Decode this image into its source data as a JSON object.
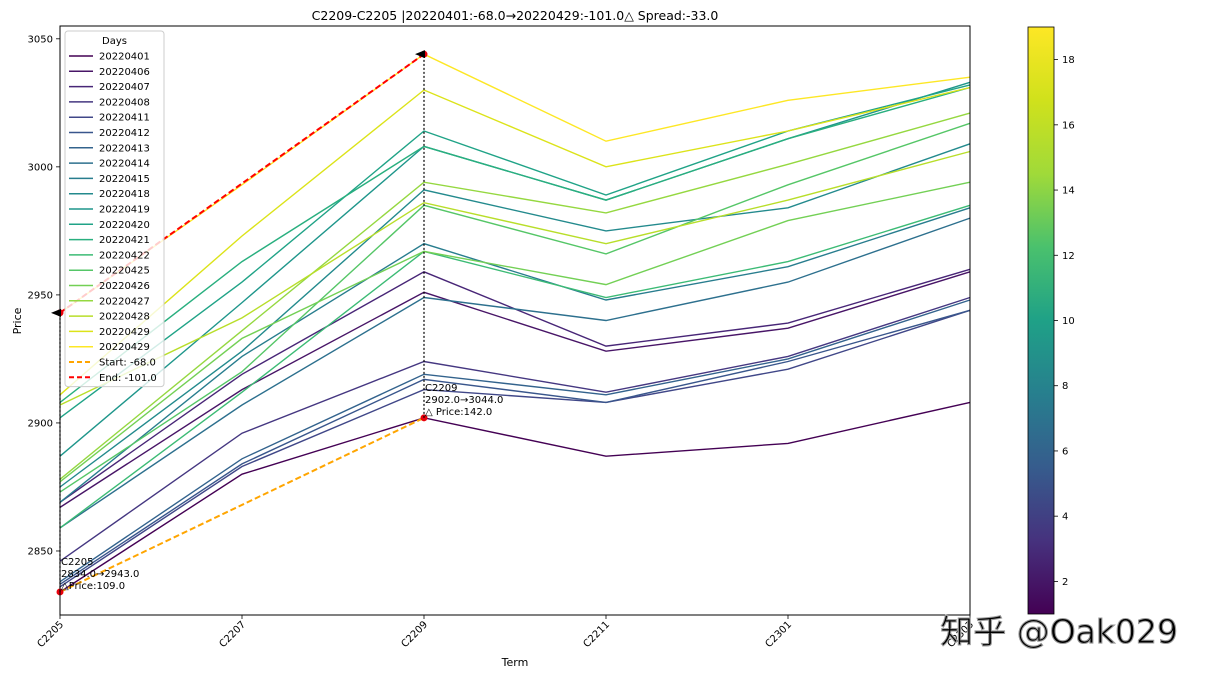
{
  "chart_data": {
    "type": "line",
    "title": "C2209-C2205 |20220401:-68.0→20220429:-101.0△ Spread:-33.0",
    "xlabel": "Term",
    "ylabel": "Price",
    "categories": [
      "C2205",
      "C2207",
      "C2209",
      "C2211",
      "C2301",
      "C2303"
    ],
    "ylim": [
      2825,
      3055
    ],
    "yticks": [
      2850,
      2900,
      2950,
      3000,
      3050
    ],
    "legend_title": "Days",
    "legend_position": "upper-left",
    "colorbar": {
      "min": 1,
      "max": 19,
      "ticks": [
        2,
        4,
        6,
        8,
        10,
        12,
        14,
        16,
        18
      ]
    },
    "series": [
      {
        "name": "20220401",
        "color": "#440154",
        "values": [
          2834,
          2880,
          2902,
          2887,
          2892,
          2908
        ]
      },
      {
        "name": "20220406",
        "color": "#481567",
        "values": [
          2867,
          2913,
          2951,
          2928,
          2937,
          2959
        ]
      },
      {
        "name": "20220407",
        "color": "#482677",
        "values": [
          2869,
          2919,
          2959,
          2930,
          2939,
          2960
        ]
      },
      {
        "name": "20220408",
        "color": "#453781",
        "values": [
          2846,
          2896,
          2924,
          2912,
          2926,
          2949
        ]
      },
      {
        "name": "20220411",
        "color": "#404788",
        "values": [
          2836,
          2883,
          2913,
          2908,
          2921,
          2944
        ]
      },
      {
        "name": "20220412",
        "color": "#39568c",
        "values": [
          2837,
          2884,
          2917,
          2908,
          2924,
          2944
        ]
      },
      {
        "name": "20220413",
        "color": "#33638d",
        "values": [
          2838,
          2886,
          2919,
          2911,
          2925,
          2948
        ]
      },
      {
        "name": "20220414",
        "color": "#2d708e",
        "values": [
          2859,
          2907,
          2949,
          2940,
          2955,
          2980
        ]
      },
      {
        "name": "20220415",
        "color": "#287d8e",
        "values": [
          2869,
          2926,
          2970,
          2948,
          2961,
          2984
        ]
      },
      {
        "name": "20220418",
        "color": "#238a8d",
        "values": [
          2875,
          2928,
          2991,
          2975,
          2984,
          3009
        ]
      },
      {
        "name": "20220419",
        "color": "#1f968b",
        "values": [
          2887,
          2947,
          3008,
          2987,
          3011,
          3033
        ]
      },
      {
        "name": "20220420",
        "color": "#20a387",
        "values": [
          2902,
          2955,
          3014,
          2989,
          3014,
          3032
        ]
      },
      {
        "name": "20220421",
        "color": "#29af7f",
        "values": [
          2908,
          2963,
          3008,
          2987,
          3011,
          3031
        ]
      },
      {
        "name": "20220422",
        "color": "#3cbb75",
        "values": [
          2859,
          2912,
          2967,
          2949,
          2963,
          2985
        ]
      },
      {
        "name": "20220425",
        "color": "#55c667",
        "values": [
          2873,
          2920,
          2985,
          2966,
          2993,
          3017
        ]
      },
      {
        "name": "20220426",
        "color": "#73d055",
        "values": [
          2877,
          2933,
          2967,
          2954,
          2979,
          2994
        ]
      },
      {
        "name": "20220427",
        "color": "#95d840",
        "values": [
          2878,
          2936,
          2994,
          2982,
          3001,
          3021
        ]
      },
      {
        "name": "20220428",
        "color": "#b8de29",
        "values": [
          2907,
          2941,
          2986,
          2970,
          2987,
          3006
        ]
      },
      {
        "name": "20220429",
        "color": "#dce319",
        "values": [
          2911,
          2973,
          3030,
          3000,
          3014,
          3031
        ]
      },
      {
        "name": "20220429",
        "color": "#fde725",
        "values": [
          2943,
          2993,
          3044,
          3010,
          3026,
          3035
        ]
      }
    ],
    "start_line": {
      "name": "Start: -68.0",
      "color": "#ffa500",
      "points": [
        [
          "C2205",
          2834
        ],
        [
          "C2209",
          2902
        ]
      ]
    },
    "end_line": {
      "name": "End: -101.0",
      "color": "#ff0000",
      "points": [
        [
          "C2205",
          2943
        ],
        [
          "C2209",
          3044
        ]
      ]
    },
    "annotations": [
      {
        "category": "C2205",
        "from": 2834,
        "to": 2943,
        "lines": [
          "C2205",
          "2834.0→2943.0",
          "△Price:109.0"
        ]
      },
      {
        "category": "C2209",
        "from": 2902,
        "to": 3044,
        "lines": [
          "C2209",
          "2902.0→3044.0",
          "△ Price:142.0"
        ]
      }
    ]
  },
  "watermark": "知乎 @Oak029"
}
